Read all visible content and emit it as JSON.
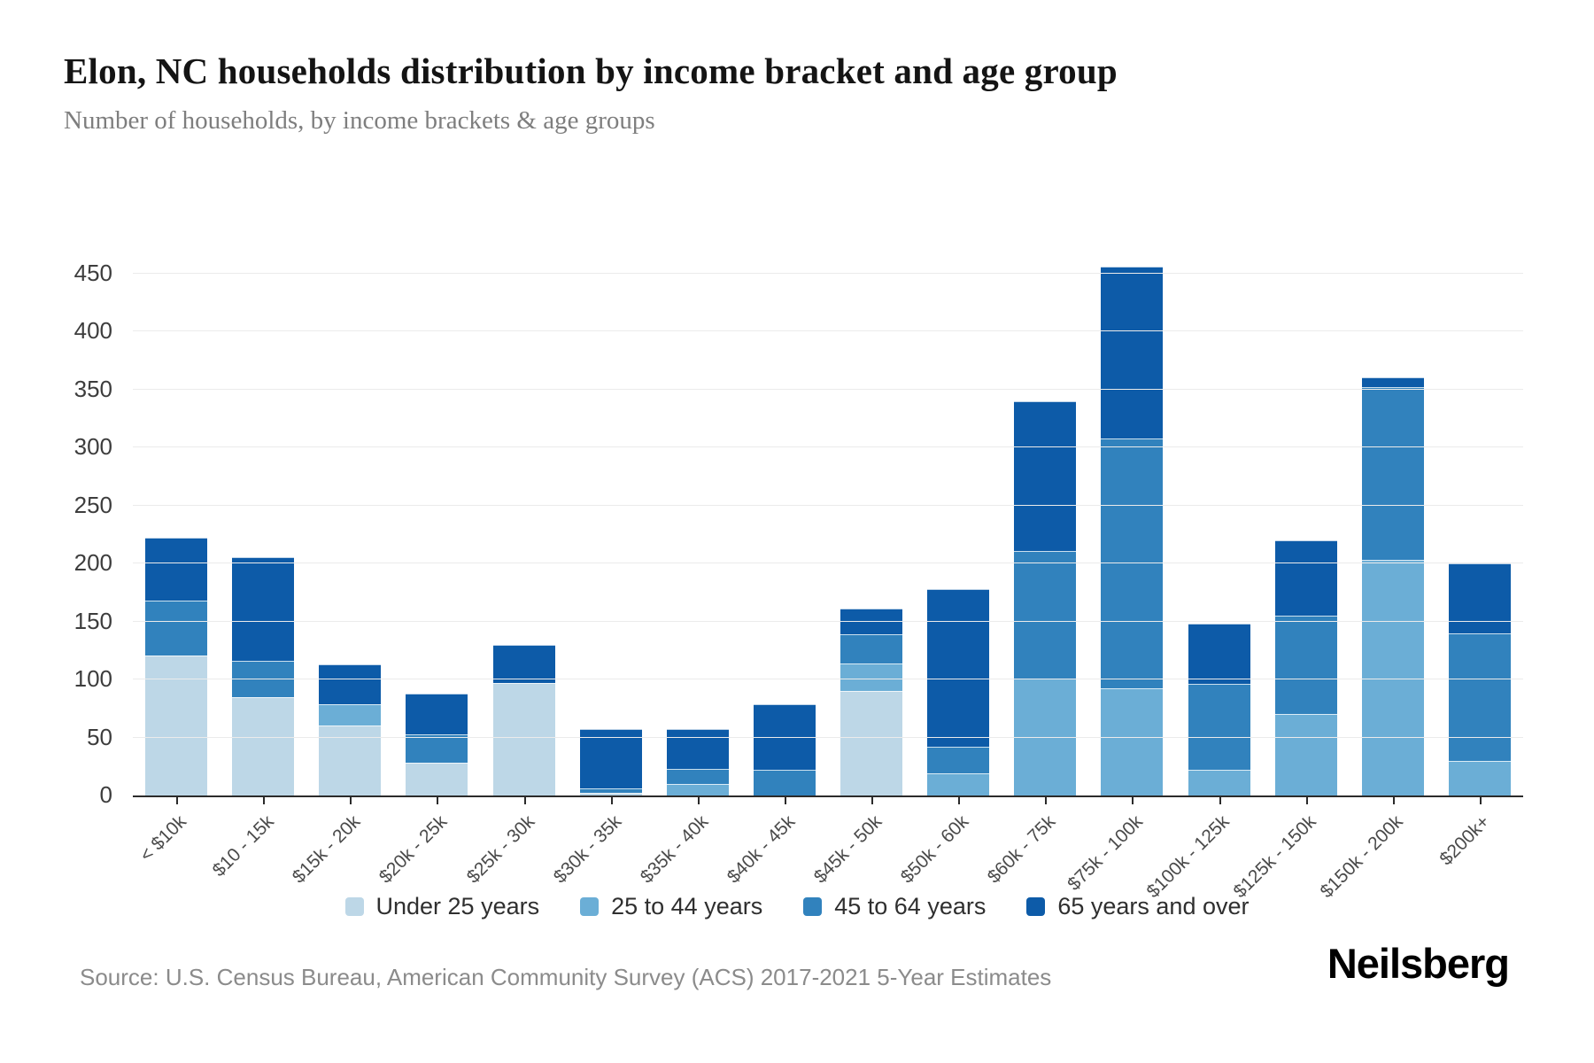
{
  "header": {
    "title": "Elon, NC households distribution by income bracket and age group",
    "subtitle": "Number of households, by income brackets & age groups"
  },
  "chart_data": {
    "type": "bar",
    "stacked": true,
    "title": "Elon, NC households distribution by income bracket and age group",
    "xlabel": "",
    "ylabel": "Number of households",
    "ylim": [
      0,
      450
    ],
    "yticks": [
      0,
      50,
      100,
      150,
      200,
      250,
      300,
      350,
      400,
      450
    ],
    "grid": "horizontal",
    "legend_position": "bottom",
    "categories": [
      "< $10k",
      "$10 - 15k",
      "$15k - 20k",
      "$20k - 25k",
      "$25k - 30k",
      "$30k - 35k",
      "$35k - 40k",
      "$40k - 45k",
      "$45k - 50k",
      "$50k - 60k",
      "$60k - 75k",
      "$75k - 100k",
      "$100k - 125k",
      "$125k - 150k",
      "$150k - 200k",
      "$200k+"
    ],
    "series": [
      {
        "name": "Under 25 years",
        "color": "#bdd7e7",
        "values": [
          121,
          85,
          60,
          28,
          97,
          2,
          0,
          0,
          90,
          0,
          0,
          0,
          0,
          0,
          0,
          0
        ]
      },
      {
        "name": "25 to 44 years",
        "color": "#6baed6",
        "values": [
          0,
          0,
          19,
          0,
          0,
          0,
          10,
          0,
          24,
          19,
          101,
          92,
          22,
          70,
          203,
          30
        ]
      },
      {
        "name": "45 to 64 years",
        "color": "#3182bd",
        "values": [
          47,
          31,
          0,
          25,
          0,
          4,
          13,
          22,
          25,
          23,
          110,
          216,
          74,
          85,
          149,
          110
        ]
      },
      {
        "name": "65 years and over",
        "color": "#0d5ba8",
        "values": [
          54,
          89,
          34,
          35,
          33,
          51,
          34,
          57,
          22,
          136,
          129,
          148,
          52,
          65,
          8,
          60
        ]
      }
    ],
    "totals": [
      222,
      205,
      113,
      88,
      130,
      57,
      57,
      79,
      161,
      178,
      340,
      456,
      148,
      220,
      360,
      200
    ]
  },
  "footer": {
    "source": "Source: U.S. Census Bureau, American Community Survey (ACS) 2017-2021 5-Year Estimates",
    "brand": "Neilsberg"
  }
}
